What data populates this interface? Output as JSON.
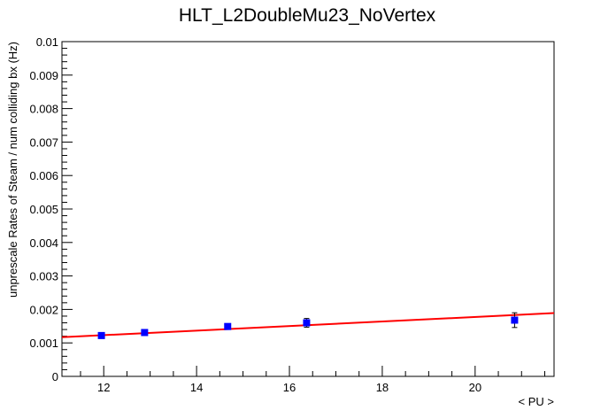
{
  "chart_data": {
    "type": "scatter",
    "title": "HLT_L2DoubleMu23_NoVertex",
    "xlabel": "< PU >",
    "ylabel": "unprescale Rates of Steam / num colliding bx (Hz)",
    "xlim": [
      11.1,
      21.7
    ],
    "ylim": [
      0,
      0.01
    ],
    "x_ticks": [
      12,
      14,
      16,
      18,
      20
    ],
    "x_tick_labels": [
      "12",
      "14",
      "16",
      "18",
      "20"
    ],
    "y_ticks": [
      0,
      0.001,
      0.002,
      0.003,
      0.004,
      0.005,
      0.006,
      0.007,
      0.008,
      0.009,
      0.01
    ],
    "y_tick_labels": [
      "0",
      "0.001",
      "0.002",
      "0.003",
      "0.004",
      "0.005",
      "0.006",
      "0.007",
      "0.008",
      "0.009",
      "0.01"
    ],
    "grid": false,
    "legend": "none",
    "series": [
      {
        "kind": "points",
        "color": "#0000ff",
        "x": [
          11.95,
          12.88,
          14.67,
          16.37,
          20.85
        ],
        "y": [
          0.00122,
          0.00131,
          0.00149,
          0.0016,
          0.00168
        ],
        "yerr": [
          8e-05,
          8e-05,
          8e-05,
          0.00013,
          0.00022
        ],
        "xerr": [
          0.05,
          0.05,
          0.05,
          0.05,
          0.05
        ]
      },
      {
        "kind": "fit",
        "color": "#ff0000",
        "x": [
          11.1,
          21.7
        ],
        "y": [
          0.00117,
          0.00189
        ]
      }
    ]
  }
}
